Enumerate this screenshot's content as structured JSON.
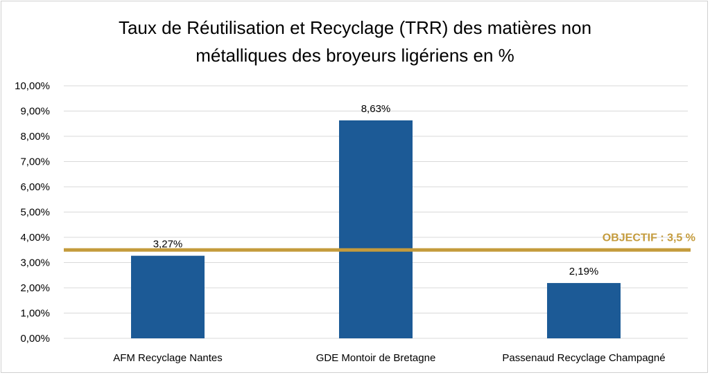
{
  "title_line1": "Taux de Réutilisation et Recyclage (TRR) des matières non",
  "title_line2": "métalliques des broyeurs ligériens en %",
  "colors": {
    "bar": "#1c5a96",
    "target": "#c49b3c",
    "grid": "#d9d9d9"
  },
  "chart_data": {
    "type": "bar",
    "categories": [
      "AFM Recyclage Nantes",
      "GDE Montoir de Bretagne",
      "Passenaud Recyclage Champagné"
    ],
    "values": [
      3.27,
      8.63,
      2.19
    ],
    "data_labels": [
      "3,27%",
      "8,63%",
      "2,19%"
    ],
    "title": "Taux de Réutilisation et Recyclage (TRR) des matières non métalliques des broyeurs ligériens en %",
    "xlabel": "",
    "ylabel": "",
    "ylim": [
      0,
      10
    ],
    "yticks": [
      0,
      1,
      2,
      3,
      4,
      5,
      6,
      7,
      8,
      9,
      10
    ],
    "ytick_labels": [
      "0,00%",
      "1,00%",
      "2,00%",
      "3,00%",
      "4,00%",
      "5,00%",
      "6,00%",
      "7,00%",
      "8,00%",
      "9,00%",
      "10,00%"
    ],
    "grid": true,
    "target": {
      "value": 3.5,
      "label": "OBJECTIF : 3,5 %"
    }
  }
}
